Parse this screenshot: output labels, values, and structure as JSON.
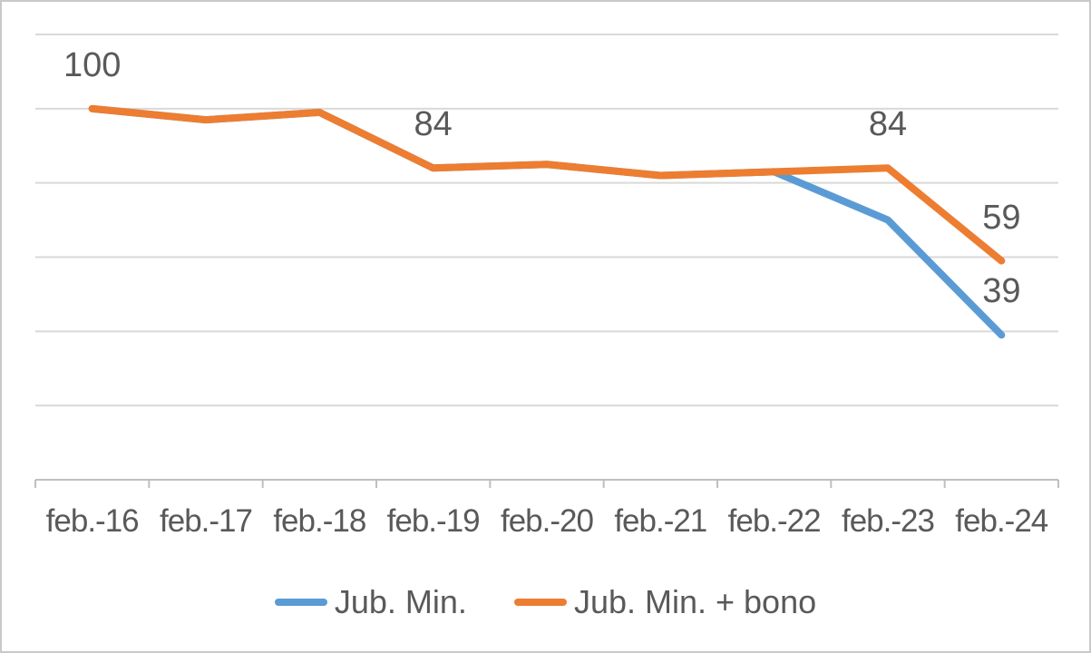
{
  "chart_data": {
    "type": "line",
    "title": "",
    "xlabel": "",
    "ylabel": "",
    "categories": [
      "feb.-16",
      "feb.-17",
      "feb.-18",
      "feb.-19",
      "feb.-20",
      "feb.-21",
      "feb.-22",
      "feb.-23",
      "feb.-24"
    ],
    "series": [
      {
        "name": "Jub. Min.",
        "color": "#5B9BD5",
        "values": [
          100,
          97,
          99,
          84,
          85,
          82,
          83,
          70,
          39
        ]
      },
      {
        "name": "Jub. Min. + bono",
        "color": "#ED7D31",
        "values": [
          100,
          97,
          99,
          84,
          85,
          82,
          83,
          84,
          59
        ]
      }
    ],
    "point_labels": [
      {
        "series": 1,
        "index": 0,
        "text": "100"
      },
      {
        "series": 1,
        "index": 3,
        "text": "84"
      },
      {
        "series": 1,
        "index": 7,
        "text": "84"
      },
      {
        "series": 1,
        "index": 8,
        "text": "59"
      },
      {
        "series": 0,
        "index": 8,
        "text": "39"
      }
    ],
    "ylim": [
      0,
      120
    ],
    "grid_step": 20,
    "grid": true,
    "y_axis_labels_visible": false,
    "legend_position": "bottom",
    "colors": {
      "gridline": "#d9d9d9",
      "axis": "#bfbfbf",
      "label_text": "#595959"
    }
  }
}
